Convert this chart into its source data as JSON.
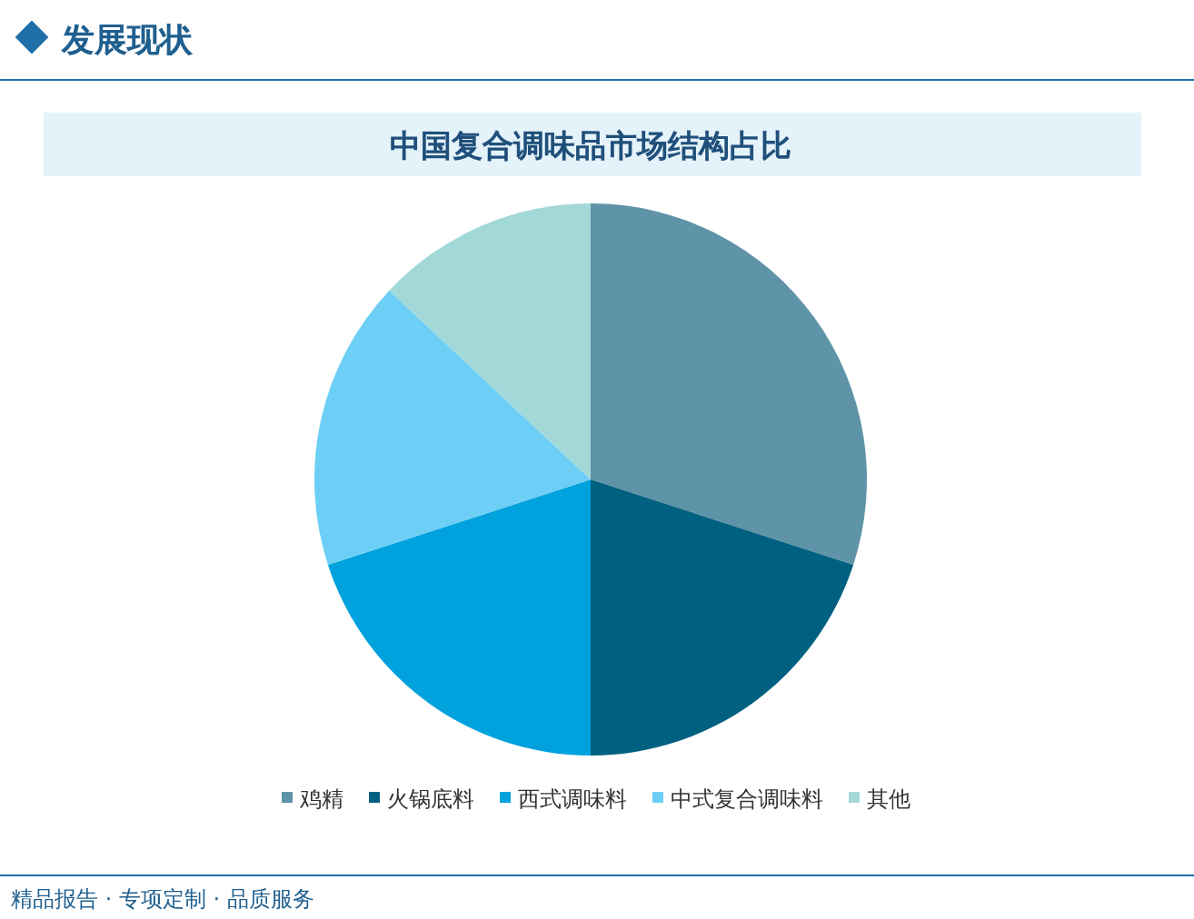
{
  "chart_data": {
    "type": "pie",
    "title": "中国复合调味品市场结构占比",
    "categories": [
      "鸡精",
      "火锅底料",
      "西式调味料",
      "中式复合调味料",
      "其他"
    ],
    "values": [
      30,
      20,
      20,
      17,
      13
    ],
    "colors": [
      "#5e93a8",
      "#00607f",
      "#00a2de",
      "#6dcff5",
      "#a3d8d8"
    ],
    "legend": "bottom",
    "annotations": [
      "发展现状",
      "精品报告 · 专项定制 · 品质服务"
    ]
  }
}
